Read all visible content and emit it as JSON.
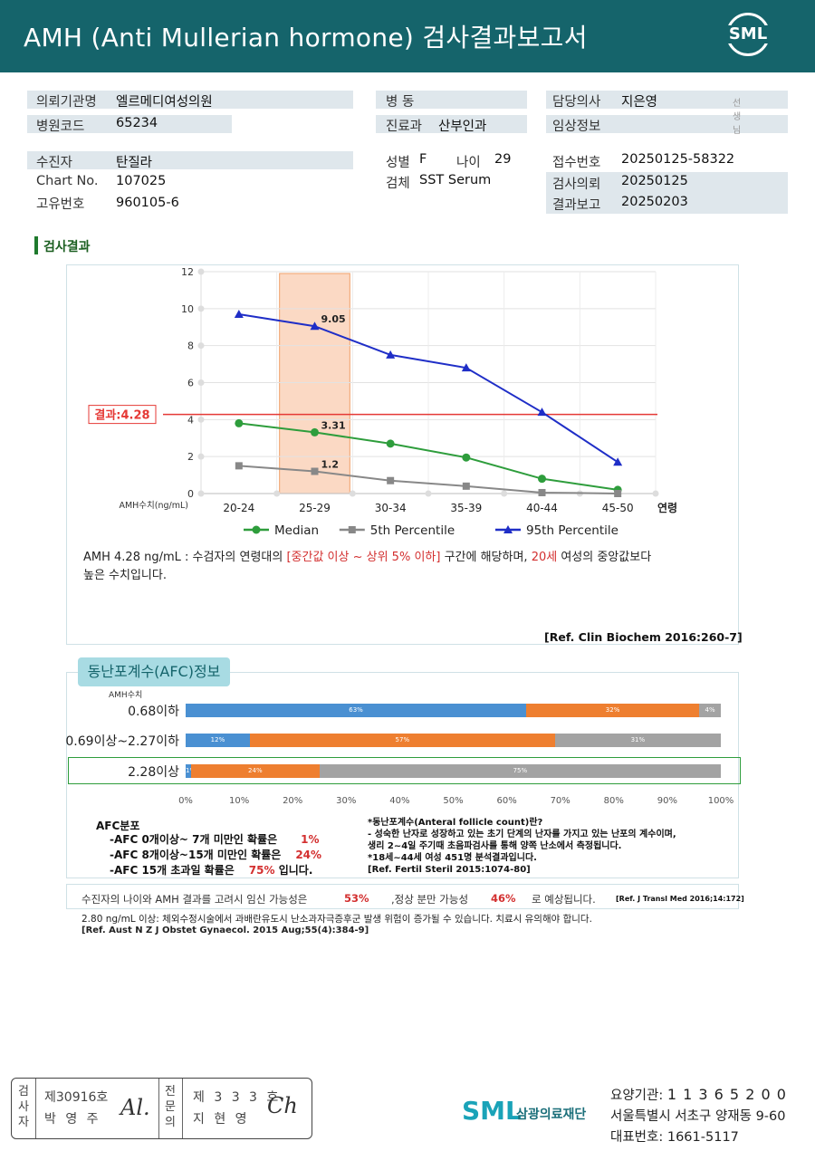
{
  "header": {
    "title": "AMH (Anti Mullerian hormone) 검사결과보고서",
    "logo_text": "SML"
  },
  "patient_info": {
    "institution_label": "의뢰기관명",
    "institution": "엘르메디여성의원",
    "hospital_code_label": "병원코드",
    "hospital_code": "65234",
    "ward_label": "병 동",
    "ward": "",
    "dept_label": "진료과",
    "dept": "산부인과",
    "doctor_label": "담당의사",
    "doctor": "지은영",
    "doctor_suffix": "선생님",
    "clinical_label": "임상정보",
    "clinical": "",
    "patient_label": "수진자",
    "patient": "탄질라",
    "chart_label": "Chart No.",
    "chart": "107025",
    "id_label": "고유번호",
    "id": "960105-6",
    "sex_label": "성별",
    "sex": "F",
    "age_label": "나이",
    "age": "29",
    "specimen_label": "검체",
    "specimen": "SST Serum",
    "receipt_label": "접수번호",
    "receipt": "20250125-58322",
    "request_label": "검사의뢰",
    "request": "20250125",
    "report_label": "결과보고",
    "report": "20250203"
  },
  "section_title": "검사결과",
  "chart_data": {
    "type": "line",
    "categories": [
      "20-24",
      "25-29",
      "30-34",
      "35-39",
      "40-44",
      "45-50"
    ],
    "xlabel": "연령",
    "ylabel": "AMH수치(ng/mL)",
    "ylim": [
      0,
      12
    ],
    "yticks": [
      0,
      2,
      4,
      6,
      8,
      10,
      12
    ],
    "grid": true,
    "legend_position": "bottom",
    "highlight_category": "25-29",
    "result_line": {
      "value": 4.28,
      "label": "결과:4.28",
      "color": "#e53935"
    },
    "series": [
      {
        "name": "Median",
        "values": [
          3.8,
          3.31,
          2.7,
          1.95,
          0.8,
          0.2
        ],
        "color": "#2e9d3c",
        "marker": "circle",
        "label_index": 1,
        "label": "3.31"
      },
      {
        "name": "5th Percentile",
        "values": [
          1.5,
          1.2,
          0.7,
          0.4,
          0.05,
          0.0
        ],
        "color": "#888888",
        "marker": "square",
        "label_index": 1,
        "label": "1.2"
      },
      {
        "name": "95th Percentile",
        "values": [
          9.7,
          9.05,
          7.5,
          6.8,
          4.4,
          1.7
        ],
        "color": "#1f2ec7",
        "marker": "triangle",
        "label_index": 1,
        "label": "9.05"
      }
    ]
  },
  "interpretation": {
    "part1": "AMH  4.28 ng/mL : 수검자의 연령대의 ",
    "range": "[중간값 이상 ~ 상위 5% 이하]",
    "part2": "  구간에 해당하며, ",
    "age": "20세",
    "part3": "  여성의 중앙값보다",
    "line2": "높은 수치입니다.",
    "ref": "[Ref. Clin Biochem 2016:260-7]"
  },
  "afc": {
    "tag": "동난포계수(AFC)정보",
    "axis_caption": "AMH수치",
    "colors": {
      "low": "#4a90d2",
      "mid": "#ee7f30",
      "high": "#a3a3a3"
    },
    "rows": [
      {
        "label": "0.68이하",
        "values": [
          63,
          32,
          4
        ],
        "labels": [
          "63%",
          "32%",
          "4%"
        ]
      },
      {
        "label": "0.69이상~2.27이하",
        "values": [
          12,
          57,
          31
        ],
        "labels": [
          "12%",
          "57%",
          "31%"
        ]
      },
      {
        "label": "2.28이상",
        "values": [
          1,
          24,
          75
        ],
        "labels": [
          "1%",
          "24%",
          "75%"
        ]
      }
    ],
    "ticks": [
      "0%",
      "10%",
      "20%",
      "30%",
      "40%",
      "50%",
      "60%",
      "70%",
      "80%",
      "90%",
      "100%"
    ],
    "dist_title": "AFC분포",
    "dist": [
      {
        "text": "-AFC  0개이상~ 7개 미만인 확률은",
        "pct": "1%"
      },
      {
        "text": "-AFC  8개이상~15개 미만인 확률은",
        "pct": "24%"
      },
      {
        "text": "-AFC  15개 초과일 확률은",
        "pct": "75%",
        "suffix": "입니다."
      }
    ],
    "desc": [
      "*동난포계수(Anteral follicle count)란?",
      "- 성숙한 난자로 성장하고 있는 초기 단계의 난자를 가지고 있는 난포의 계수이며,",
      "  생리 2~4일 주기때 초음파검사를 통해 양쪽 난소에서 측정됩니다.",
      "*18세~44세 여성 451명 분석결과입니다.",
      "[Ref. Fertil Steril 2015:1074-80]"
    ]
  },
  "pregnancy": {
    "part1": "수진자의  나이와 AMH 결과를 고려시 임신 가능성은",
    "value1": "53%",
    "part2": ",정상 분만 가능성",
    "value2": "46%",
    "part3": "로 예상됩니다.",
    "ref": "[Ref. J Transl Med 2016;14:172]"
  },
  "footnote": {
    "line1": "2.80  ng/mL  이상: 체외수정시술에서 과배란유도시 난소과자극증후군 발생 위험이 증가될 수 있습니다. 치료시 유의해야 합니다.",
    "line2": "[Ref. Aust N Z J Obstet Gynaecol. 2015 Aug;55(4):384-9]"
  },
  "signature": {
    "inspector_label": [
      "검",
      "사",
      "자"
    ],
    "inspector_no": "제30916호",
    "inspector_name": "박 영 주",
    "specialist_label": [
      "전",
      "문",
      "의"
    ],
    "specialist_no": "제 3 3 3 호",
    "specialist_name": "지 현 영"
  },
  "footer": {
    "logo": "SML",
    "corp": "삼광의료재단",
    "code_label": "요양기관: ",
    "code": "1 1 3 6 5 2 0 0",
    "address": "서울특별시 서초구 양재동 9-60",
    "phone_label": "대표번호: ",
    "phone": "1661-5117"
  }
}
